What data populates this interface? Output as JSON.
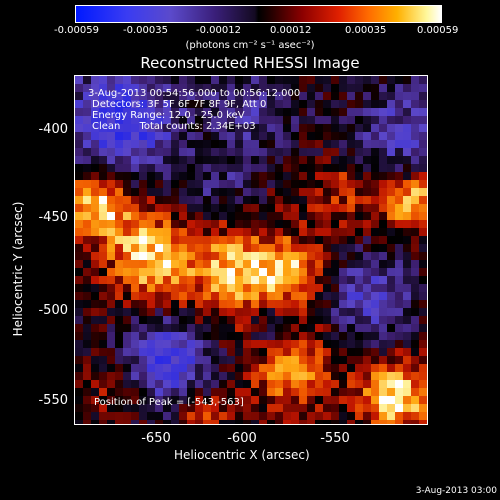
{
  "colorbar": {
    "ticks": [
      "-0.00059",
      "-0.00035",
      "-0.00012",
      "0.00012",
      "0.00035",
      "0.00059"
    ],
    "units_label": "(photons cm⁻² s⁻¹ asec⁻²)"
  },
  "title": "Reconstructed RHESSI Image",
  "info": {
    "time": "3-Aug-2013 00:54:56.000 to 00:56:12.000",
    "detectors": "Detectors: 3F 5F 6F 7F 8F 9F, Att 0",
    "energy": "Energy Range: 12.0 - 25.0 keV",
    "clean": "Clean      Total counts: 2.34E+03",
    "peak": "Position of Peak = [-543,-563]"
  },
  "axes": {
    "xlabel": "Heliocentric X (arcsec)",
    "ylabel": "Heliocentric Y (arcsec)",
    "xticks": [
      "-650",
      "-600",
      "-550"
    ],
    "yticks": [
      "-400",
      "-450",
      "-500",
      "-550"
    ]
  },
  "timestamp": "3-Aug-2013 03:00"
}
